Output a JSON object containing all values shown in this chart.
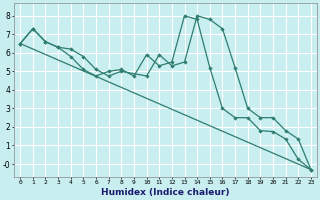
{
  "xlabel": "Humidex (Indice chaleur)",
  "bg_color": "#c8eef0",
  "grid_color": "#ffffff",
  "line_color": "#2e7d6e",
  "xlim": [
    -0.5,
    23.5
  ],
  "ylim": [
    -0.7,
    8.7
  ],
  "yticks": [
    0,
    1,
    2,
    3,
    4,
    5,
    6,
    7,
    8
  ],
  "ytick_labels": [
    "-0",
    "1",
    "2",
    "3",
    "4",
    "5",
    "6",
    "7",
    "8"
  ],
  "xticks": [
    0,
    1,
    2,
    3,
    4,
    5,
    6,
    7,
    8,
    9,
    10,
    11,
    12,
    13,
    14,
    15,
    16,
    17,
    18,
    19,
    20,
    21,
    22,
    23
  ],
  "series1_x": [
    0,
    1,
    2,
    3,
    4,
    5,
    6,
    7,
    8,
    9,
    10,
    11,
    12,
    13,
    14,
    15,
    16,
    17,
    18,
    19,
    20,
    21,
    22,
    23
  ],
  "series1_y": [
    6.5,
    7.3,
    6.6,
    6.3,
    5.8,
    5.1,
    4.75,
    5.0,
    5.1,
    4.75,
    5.9,
    5.3,
    5.5,
    8.0,
    7.8,
    5.2,
    3.0,
    2.5,
    2.5,
    1.8,
    1.75,
    1.35,
    0.25,
    -0.3
  ],
  "series2_x": [
    0,
    1,
    2,
    3,
    4,
    5,
    6,
    7,
    8,
    10,
    11,
    12,
    13,
    14,
    15,
    16,
    17,
    18,
    19,
    20,
    21,
    22,
    23
  ],
  "series2_y": [
    6.5,
    7.3,
    6.6,
    6.3,
    6.2,
    5.8,
    5.1,
    4.75,
    5.0,
    4.75,
    5.9,
    5.3,
    5.5,
    8.0,
    7.8,
    7.3,
    5.2,
    3.0,
    2.5,
    2.5,
    1.8,
    1.35,
    -0.3
  ],
  "series3_x": [
    0,
    23
  ],
  "series3_y": [
    6.5,
    -0.3
  ]
}
